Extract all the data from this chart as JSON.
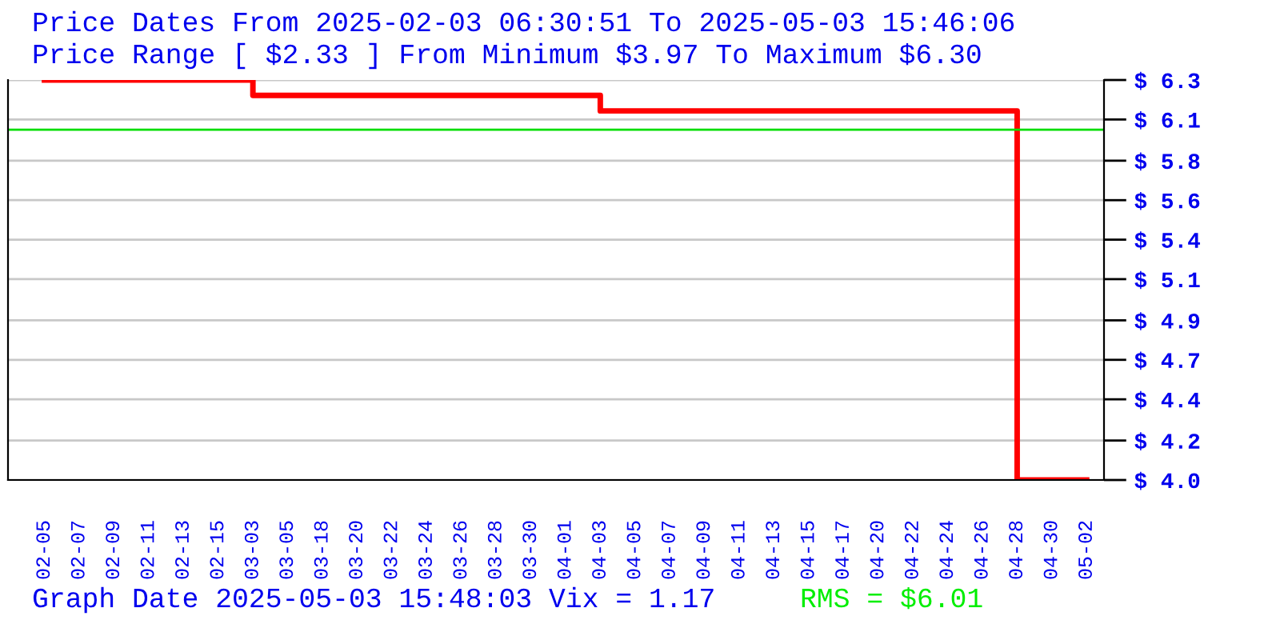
{
  "chart_data": {
    "type": "step",
    "title": "Price Dates From 2025-02-03 06:30:51 To 2025-05-03 15:46:06",
    "subtitle": "Price Range [ $2.33 ] From Minimum $3.97 To Maximum $6.30",
    "categories": [
      "02-05",
      "02-07",
      "02-09",
      "02-11",
      "02-13",
      "02-15",
      "03-03",
      "03-05",
      "03-18",
      "03-20",
      "03-22",
      "03-24",
      "03-26",
      "03-28",
      "03-30",
      "04-01",
      "04-03",
      "04-05",
      "04-07",
      "04-09",
      "04-11",
      "04-13",
      "04-15",
      "04-17",
      "04-20",
      "04-22",
      "04-24",
      "04-26",
      "04-28",
      "04-30",
      "05-02"
    ],
    "series": [
      {
        "color": "#ff0000",
        "values": [
          6.3,
          6.3,
          6.3,
          6.3,
          6.3,
          6.3,
          6.21,
          6.21,
          6.21,
          6.21,
          6.21,
          6.21,
          6.21,
          6.21,
          6.21,
          6.21,
          6.12,
          6.12,
          6.12,
          6.12,
          6.12,
          6.12,
          6.12,
          6.12,
          6.12,
          6.12,
          6.12,
          6.12,
          3.97,
          3.97,
          3.97
        ]
      }
    ],
    "ylim": [
      3.97,
      6.3
    ],
    "yticks": [
      {
        "value": 3.97,
        "label": "$ 4.0"
      },
      {
        "value": 4.2,
        "label": "$ 4.2"
      },
      {
        "value": 4.44,
        "label": "$ 4.4"
      },
      {
        "value": 4.67,
        "label": "$ 4.7"
      },
      {
        "value": 4.9,
        "label": "$ 4.9"
      },
      {
        "value": 5.14,
        "label": "$ 5.1"
      },
      {
        "value": 5.37,
        "label": "$ 5.4"
      },
      {
        "value": 5.6,
        "label": "$ 5.6"
      },
      {
        "value": 5.83,
        "label": "$ 5.8"
      },
      {
        "value": 6.07,
        "label": "$ 6.1"
      },
      {
        "value": 6.3,
        "label": "$ 6.3"
      }
    ],
    "ref_lines": [
      {
        "axis": "y",
        "value": 6.01,
        "color": "#00dd00"
      }
    ],
    "annotations": [
      "Graph Date 2025-05-03 15:48:03 Vix = 1.17",
      "RMS = $6.01"
    ],
    "grid": "y",
    "legend": false,
    "marker": "none",
    "line_style": "solid"
  }
}
